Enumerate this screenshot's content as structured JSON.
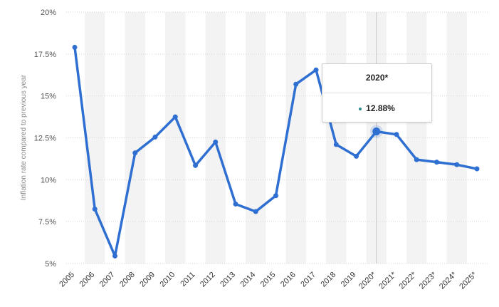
{
  "chart_data": {
    "type": "line",
    "ylabel": "Inflation rate compared to previous year",
    "ylim": [
      5,
      20
    ],
    "yticks": [
      "5%",
      "7.5%",
      "10%",
      "12.5%",
      "15%",
      "17.5%",
      "20%"
    ],
    "categories": [
      "2005",
      "2006",
      "2007",
      "2008",
      "2009",
      "2010",
      "2011",
      "2012",
      "2013",
      "2014",
      "2015",
      "2016",
      "2017",
      "2018",
      "2019",
      "2020*",
      "2021*",
      "2022*",
      "2023*",
      "2024*",
      "2025*"
    ],
    "series": [
      {
        "values": [
          17.9,
          8.25,
          5.45,
          11.6,
          12.55,
          13.75,
          10.85,
          12.25,
          8.55,
          8.1,
          9.05,
          15.7,
          16.55,
          12.1,
          11.4,
          12.88,
          12.7,
          11.2,
          11.05,
          10.9,
          10.65
        ]
      }
    ],
    "line_color": "#2f6fd1",
    "band_color": "#f3f3f3",
    "grid": "horizontal dashed",
    "highlighted_category": "2020*",
    "tooltip": {
      "title": "2020*",
      "value": "12.88%"
    }
  }
}
